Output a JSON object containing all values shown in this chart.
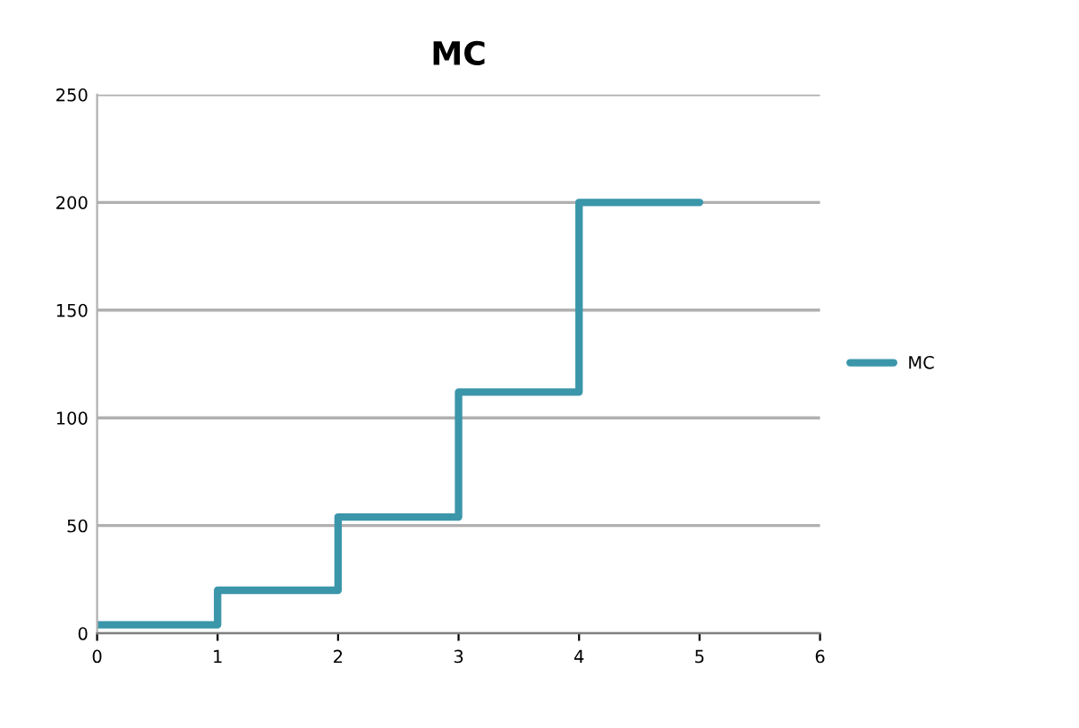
{
  "chart_data": {
    "type": "step",
    "title": "MC",
    "x": [
      0,
      1,
      2,
      3,
      4,
      5
    ],
    "series": [
      {
        "name": "MC",
        "color": "#3b96aa",
        "values": [
          4,
          20,
          54,
          112,
          200,
          200
        ]
      }
    ],
    "xlim": [
      0,
      6
    ],
    "xticks": [
      0,
      1,
      2,
      3,
      4,
      5,
      6
    ],
    "ylim": [
      0,
      250
    ],
    "yticks": [
      0,
      50,
      100,
      150,
      200,
      250
    ],
    "grid": "y",
    "legend": "right",
    "marker": "none",
    "line_style": "solid"
  }
}
